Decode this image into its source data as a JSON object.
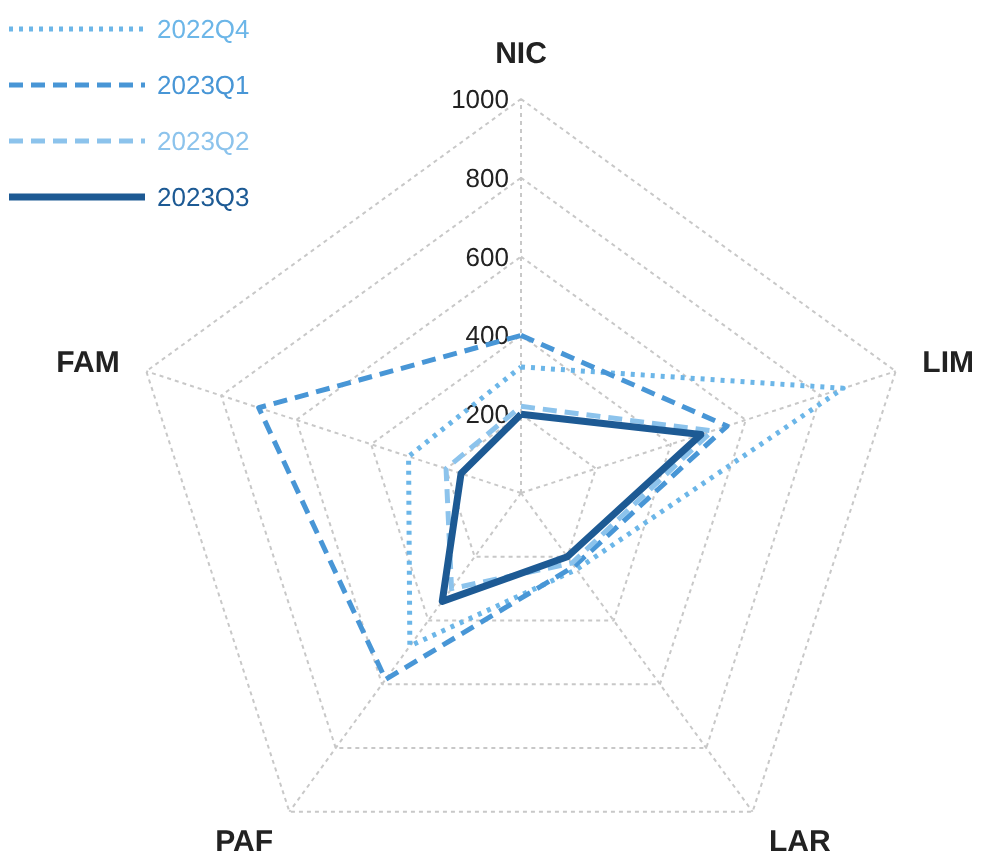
{
  "chart_data": {
    "type": "radar",
    "categories": [
      "NIC",
      "LIM",
      "LAR",
      "PAF",
      "FAM"
    ],
    "series": [
      {
        "name": "2022Q4",
        "color": "#6cb6e8",
        "line_style": "dotted",
        "values": [
          320,
          860,
          240,
          480,
          300
        ]
      },
      {
        "name": "2023Q1",
        "color": "#4896d6",
        "line_style": "dashed",
        "values": [
          400,
          550,
          230,
          585,
          700
        ]
      },
      {
        "name": "2023Q2",
        "color": "#8cc3ec",
        "line_style": "dashed",
        "values": [
          220,
          510,
          220,
          300,
          200
        ]
      },
      {
        "name": "2023Q3",
        "color": "#1d5a94",
        "line_style": "solid",
        "values": [
          200,
          480,
          200,
          340,
          160
        ]
      }
    ],
    "ylim": [
      0,
      1000
    ],
    "yticks": [
      200,
      400,
      600,
      800,
      1000
    ],
    "grid": true,
    "legend": "top left",
    "marker": "none"
  }
}
